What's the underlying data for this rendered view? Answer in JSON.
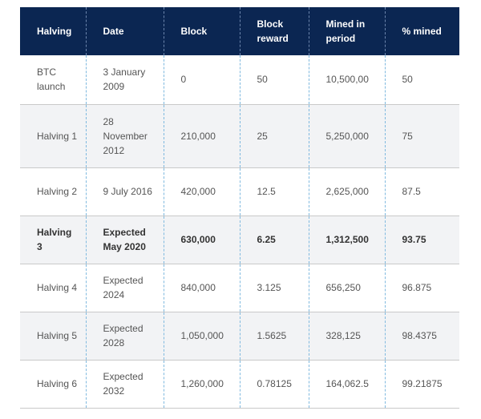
{
  "table": {
    "headers": [
      "Halving",
      "Date",
      "Block",
      "Block reward",
      "Mined in period",
      "% mined"
    ],
    "rows": [
      [
        "BTC launch",
        "3 January 2009",
        "0",
        "50",
        "10,500,00",
        "50"
      ],
      [
        "Halving 1",
        "28 November 2012",
        "210,000",
        "25",
        "5,250,000",
        "75"
      ],
      [
        "Halving 2",
        "9 July 2016",
        "420,000",
        "12.5",
        "2,625,000",
        "87.5"
      ],
      [
        "Halving 3",
        "Expected May 2020",
        "630,000",
        "6.25",
        "1,312,500",
        "93.75"
      ],
      [
        "Halving 4",
        "Expected 2024",
        "840,000",
        "3.125",
        "656,250",
        "96.875"
      ],
      [
        "Halving 5",
        "Expected 2028",
        "1,050,000",
        "1.5625",
        "328,125",
        "98.4375"
      ],
      [
        "Halving 6",
        "Expected 2032",
        "1,260,000",
        "0.78125",
        "164,062.5",
        "99.21875"
      ]
    ],
    "highlighted_row": 3
  },
  "colors": {
    "header_bg": "#0b2652",
    "header_text": "#ffffff",
    "stripe": "#f2f3f5",
    "column_divider": "#7fb9df"
  }
}
